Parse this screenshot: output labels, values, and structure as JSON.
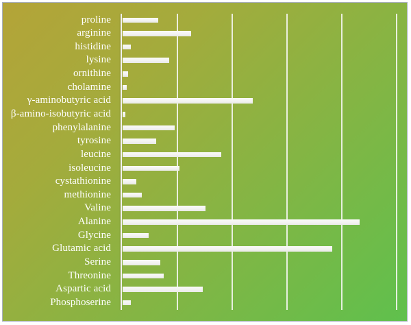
{
  "chart": {
    "frame_border_color": "#aab0c2",
    "background_gradient_start": "#b4a438",
    "background_gradient_end": "#5fc04d",
    "bar_color": "#f2f2f0",
    "gridline_color": "#f4f4f2",
    "axis_color": "#f2f2f0",
    "label_color": "#ffffff"
  },
  "chart_data": {
    "type": "bar",
    "orientation": "horizontal",
    "title": "",
    "xlabel": "",
    "ylabel": "",
    "legend": false,
    "grid": true,
    "x_range": [
      0,
      5.25
    ],
    "x_gridline_interval": 1,
    "categories": [
      "proline",
      "arginine",
      "histidine",
      "lysine",
      "ornithine",
      "cholamine",
      "γ-aminobutyric acid",
      "β-amino-isobutyric acid",
      "phenylalanine",
      "tyrosine",
      "leucine",
      "isoleucine",
      "cystathionine",
      "methionine",
      "Valine",
      "Alanine",
      "Glycine",
      "Glutamic acid",
      "Serine",
      "Threonine",
      "Aspartic acid",
      "Phosphoserine"
    ],
    "values": [
      0.65,
      1.26,
      0.15,
      0.86,
      0.11,
      0.08,
      2.38,
      0.05,
      0.96,
      0.62,
      1.81,
      1.04,
      0.25,
      0.35,
      1.52,
      4.33,
      0.48,
      3.83,
      0.69,
      0.76,
      1.47,
      0.15
    ]
  }
}
